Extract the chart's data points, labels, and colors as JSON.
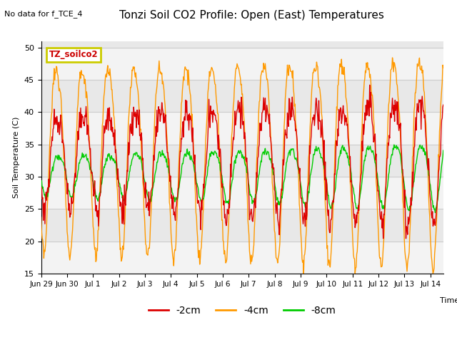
{
  "title": "Tonzi Soil CO2 Profile: Open (East) Temperatures",
  "no_data_text": "No data for f_TCE_4",
  "ylabel": "Soil Temperature (C)",
  "xlabel": "Time",
  "ylim": [
    15,
    51
  ],
  "yticks": [
    15,
    20,
    25,
    30,
    35,
    40,
    45,
    50
  ],
  "x_tick_labels": [
    "Jun 29",
    "Jun 30",
    "Jul 1",
    "Jul 2",
    "Jul 3",
    "Jul 4",
    "Jul 5",
    "Jul 6",
    "Jul 7",
    "Jul 8",
    "Jul 9",
    "Jul 10",
    "Jul 11",
    "Jul 12",
    "Jul 13",
    "Jul 14"
  ],
  "inset_label": "TZ_soilco2",
  "inset_label_color": "#cc0000",
  "inset_box_color": "#cccc00",
  "legend_entries": [
    "-2cm",
    "-4cm",
    "-8cm"
  ],
  "line_colors": [
    "#dd0000",
    "#ff9900",
    "#00cc00"
  ],
  "fig_bg_color": "#ffffff",
  "plot_bg_color": "#e8e8e8",
  "total_days": 15.5
}
